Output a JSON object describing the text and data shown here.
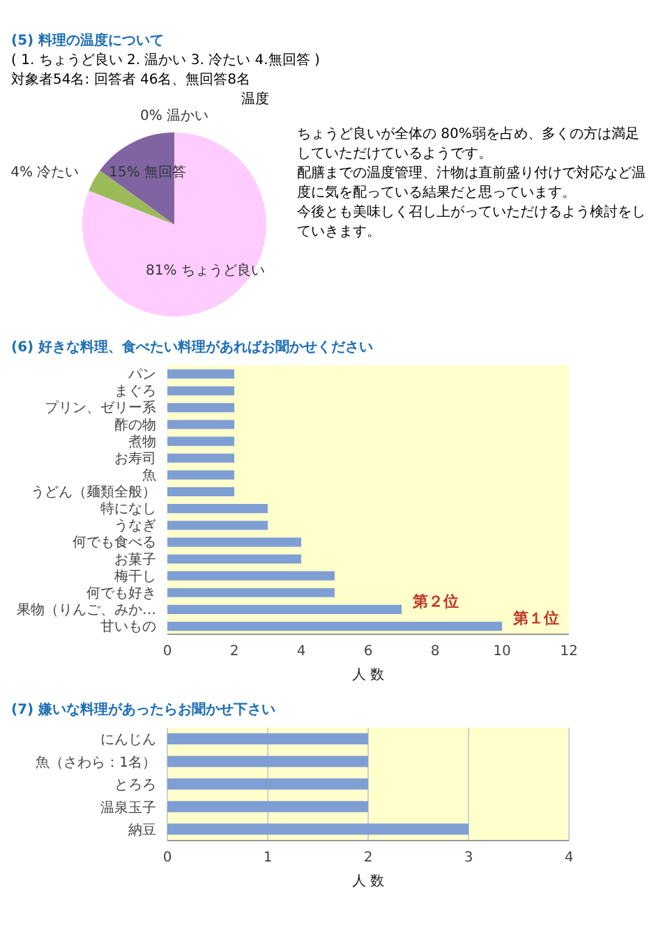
{
  "chart_data": [
    {
      "type": "pie",
      "title": "(5) 料理の温度について",
      "subtitle": "( 1. ちょうど良い 2. 温かい 3. 冷たい 4.無回答 )\n対象者54名: 回答者 46名、無回答8名",
      "annotations": [
        "温度"
      ],
      "categories": [
        "温かい",
        "ちょうど良い",
        "冷たい",
        "無回答"
      ],
      "values": [
        0,
        81,
        4,
        15
      ],
      "colors": [
        "#c0504d",
        "#ffccff",
        "#9bbb59",
        "#8064a2"
      ],
      "legend": false,
      "value_labels": [
        "0%",
        "81%",
        "4%",
        "15%"
      ]
    },
    {
      "type": "other",
      "annotations": [
        "ちょうど良いが全体の 80%弱を占め、多くの方は満足していただけているようです。",
        "配膳までの温度管理、汁物は直前盛り付けで対応など温度に気を配っている結果だと思っています。",
        "今後とも美味しく召し上がっていただけるよう検討をしていきます。"
      ]
    },
    {
      "type": "bar",
      "orientation": "horizontal",
      "title": "(6) 好きな料理、食べたい料理があればお聞かせください",
      "xlabel": "人 数",
      "categories": [
        "パン",
        "まぐろ",
        "プリン、ゼリー系",
        "酢の物",
        "煮物",
        "お寿司",
        "魚",
        "うどん（麺類全般）",
        "特になし",
        "うなぎ",
        "何でも食べる",
        "お菓子",
        "梅干し",
        "何でも好き",
        "果物（りんご、みか…",
        "甘いもの"
      ],
      "values": [
        2,
        2,
        2,
        2,
        2,
        2,
        2,
        2,
        3,
        3,
        4,
        4,
        5,
        5,
        7,
        10
      ],
      "color": "#7f9fd4",
      "xlim": [
        0,
        12
      ],
      "xticks": [
        0,
        2,
        4,
        6,
        8,
        10,
        12
      ],
      "grid": false,
      "annotations": [
        {
          "text": "第２位",
          "x": 7,
          "y": "果物（りんご、みか…"
        },
        {
          "text": "第１位",
          "x": 10,
          "y": "甘いもの"
        }
      ]
    },
    {
      "type": "bar",
      "orientation": "horizontal",
      "title": "(7) 嫌いな料理があったらお聞かせ下さい",
      "xlabel": "人 数",
      "categories": [
        "にんじん",
        "魚（さわら：1名）",
        "とろろ",
        "温泉玉子",
        "納豆"
      ],
      "values": [
        2,
        2,
        2,
        2,
        3
      ],
      "color": "#7f9fd4",
      "xlim": [
        0,
        4
      ],
      "xticks": [
        0,
        1,
        2,
        3,
        4
      ],
      "grid": "x"
    }
  ]
}
